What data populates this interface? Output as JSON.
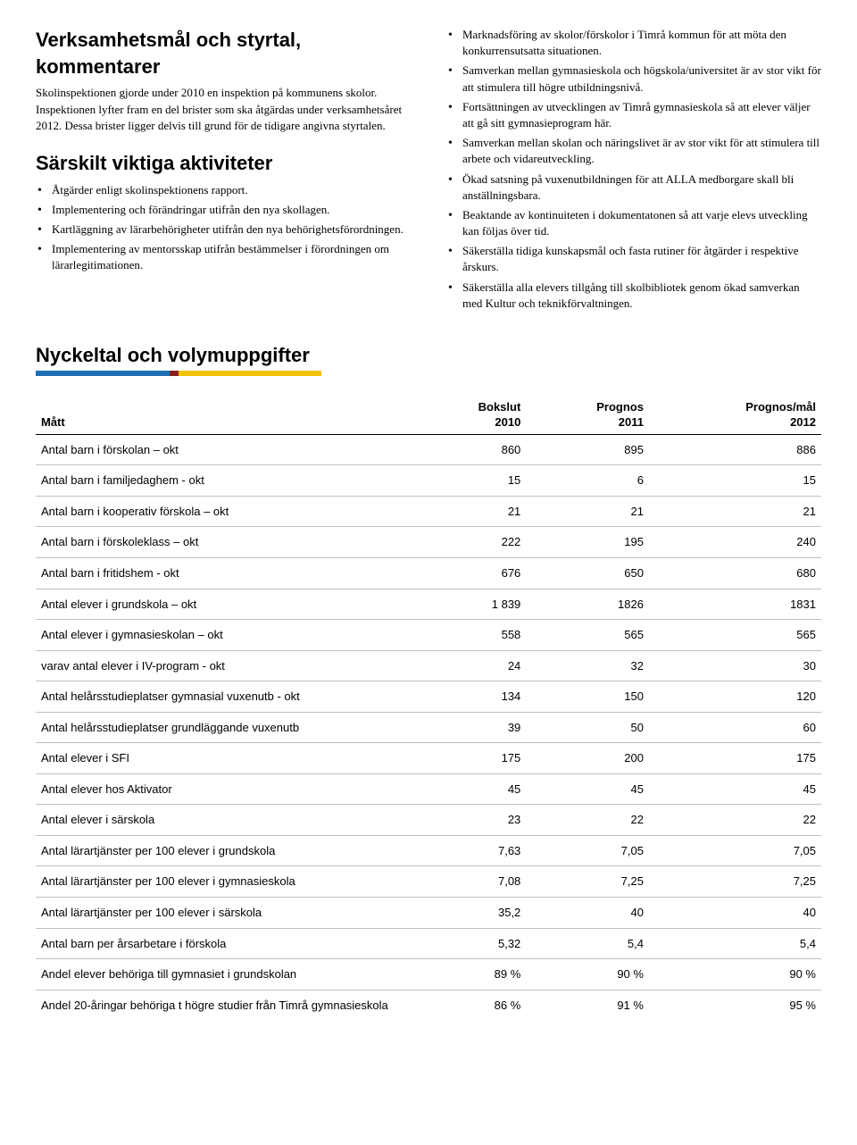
{
  "left": {
    "heading": "Verksamhetsmål och styrtal, kommentarer",
    "intro": "Skolinspektionen gjorde under 2010 en inspektion på kommunens skolor. Inspektionen lyfter fram en del brister som ska åtgärdas under verksamhetsåret 2012. Dessa brister ligger delvis till grund för de tidigare angivna styrtalen.",
    "sub_heading": "Särskilt viktiga aktiviteter",
    "items": [
      "Åtgärder enligt skolinspektionens rapport.",
      "Implementering och förändringar utifrån den  nya  skollagen.",
      "Kartläggning av lärarbehörigheter utifrån den nya behörighetsförordningen.",
      "Implementering av mentorsskap utifrån bestämmelser i förordningen om lärarlegitimationen."
    ]
  },
  "right": {
    "items": [
      "Marknadsföring av skolor/förskolor i Timrå kommun för att möta den konkurrensutsatta situationen.",
      "Samverkan mellan gymnasieskola och högskola/universitet är av stor vikt för att stimulera till högre utbildningsnivå.",
      "Fortsättningen av utvecklingen av Timrå gymnasieskola så att elever väljer att gå sitt gymnasieprogram här.",
      "Samverkan mellan skolan och näringslivet är av stor vikt för att stimulera till arbete och vidareutveckling.",
      "Ökad satsning på vuxenutbildningen för att ALLA medborgare skall bli anställningsbara.",
      "Beaktande av kontinuiteten i dokumentatonen så att varje elevs utveckling kan följas över tid.",
      "Säkerställa tidiga kunskapsmål och fasta rutiner för åtgärder i respektive årskurs.",
      "Säkerställa alla elevers tillgång till skolbibliotek genom ökad samverkan med Kultur och teknikförvaltningen."
    ]
  },
  "kpi": {
    "title": "Nyckeltal och volymuppgifter",
    "color_bar": [
      {
        "color": "#1f6fb2",
        "width": 150
      },
      {
        "color": "#8a1d1d",
        "width": 10
      },
      {
        "color": "#f2c200",
        "width": 160
      }
    ],
    "headers": {
      "label": "Mått",
      "c1_top": "Bokslut",
      "c1_sub": "2010",
      "c2_top": "Prognos",
      "c2_sub": "2011",
      "c3_top": "Prognos/mål",
      "c3_sub": "2012"
    },
    "rows": [
      {
        "label": "Antal barn i förskolan – okt",
        "v1": "860",
        "v2": "895",
        "v3": "886"
      },
      {
        "label": "Antal barn i familjedaghem - okt",
        "v1": "15",
        "v2": "6",
        "v3": "15"
      },
      {
        "label": "Antal barn i kooperativ förskola – okt",
        "v1": "21",
        "v2": "21",
        "v3": "21"
      },
      {
        "label": "Antal barn i förskoleklass – okt",
        "v1": "222",
        "v2": "195",
        "v3": "240"
      },
      {
        "label": "Antal barn i fritidshem - okt",
        "v1": "676",
        "v2": "650",
        "v3": "680"
      },
      {
        "label": "Antal elever i grundskola – okt",
        "v1": "1 839",
        "v2": "1826",
        "v3": "1831"
      },
      {
        "label": "Antal elever i gymnasieskolan – okt",
        "v1": "558",
        "v2": "565",
        "v3": "565"
      },
      {
        "label": "varav antal elever i IV-program - okt",
        "v1": "24",
        "v2": "32",
        "v3": "30"
      },
      {
        "label": "Antal helårsstudieplatser gymnasial vuxenutb - okt",
        "v1": "134",
        "v2": "150",
        "v3": "120"
      },
      {
        "label": "Antal helårsstudieplatser grundläggande vuxenutb",
        "v1": "39",
        "v2": "50",
        "v3": "60"
      },
      {
        "label": "Antal elever i SFI",
        "v1": "175",
        "v2": "200",
        "v3": "175"
      },
      {
        "label": "Antal elever hos Aktivator",
        "v1": "45",
        "v2": "45",
        "v3": "45"
      },
      {
        "label": "Antal elever i särskola",
        "v1": "23",
        "v2": "22",
        "v3": "22"
      },
      {
        "label": "Antal lärartjänster per 100 elever i grundskola",
        "v1": "7,63",
        "v2": "7,05",
        "v3": "7,05"
      },
      {
        "label": "Antal lärartjänster per 100 elever i gymnasieskola",
        "v1": "7,08",
        "v2": "7,25",
        "v3": "7,25"
      },
      {
        "label": "Antal lärartjänster per 100 elever i särskola",
        "v1": "35,2",
        "v2": "40",
        "v3": "40"
      },
      {
        "label": "Antal barn per årsarbetare i förskola",
        "v1": "5,32",
        "v2": "5,4",
        "v3": "5,4"
      },
      {
        "label": "Andel elever behöriga till gymnasiet i grundskolan",
        "v1": "89 %",
        "v2": "90 %",
        "v3": "90 %"
      },
      {
        "label": "Andel 20-åringar behöriga t högre studier från Timrå gymnasieskola",
        "v1": "86 %",
        "v2": "91 %",
        "v3": "95 %",
        "noborder": true
      }
    ]
  }
}
